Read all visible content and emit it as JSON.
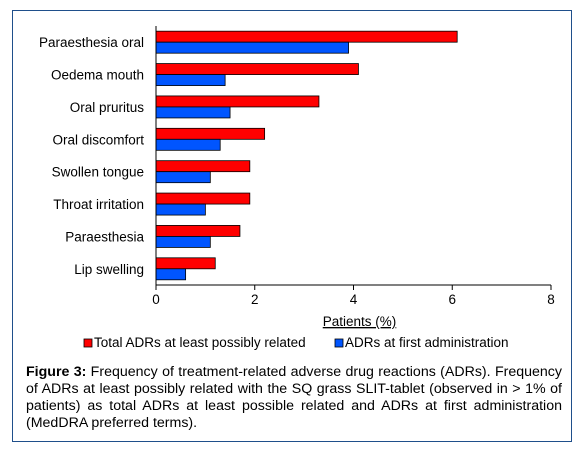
{
  "chart_data": {
    "type": "bar",
    "orientation": "horizontal",
    "categories": [
      "Paraesthesia oral",
      "Oedema mouth",
      "Oral pruritus",
      "Oral discomfort",
      "Swollen tongue",
      "Throat irritation",
      "Paraesthesia",
      "Lip swelling"
    ],
    "series": [
      {
        "name": "Total ADRs at least possibly related",
        "color": "#ff0000",
        "values": [
          6.1,
          4.1,
          3.3,
          2.2,
          1.9,
          1.9,
          1.7,
          1.2
        ]
      },
      {
        "name": "ADRs at first administration",
        "color": "#0055ff",
        "values": [
          3.9,
          1.4,
          1.5,
          1.3,
          1.1,
          1.0,
          1.1,
          0.6
        ]
      }
    ],
    "xlabel": "Patients (%)",
    "xlim": [
      0,
      8
    ],
    "xticks": [
      "0",
      "2",
      "4",
      "6",
      "8"
    ],
    "grid": false,
    "legend_position": "bottom"
  },
  "caption": {
    "label": "Figure 3:",
    "text": " Frequency of treatment-related adverse drug reactions (ADRs). Frequency of ADRs at least possibly related with the SQ grass SLIT-tablet (observed in > 1% of patients) as total ADRs at least possible related and ADRs at first administration (MedDRA preferred terms)."
  }
}
